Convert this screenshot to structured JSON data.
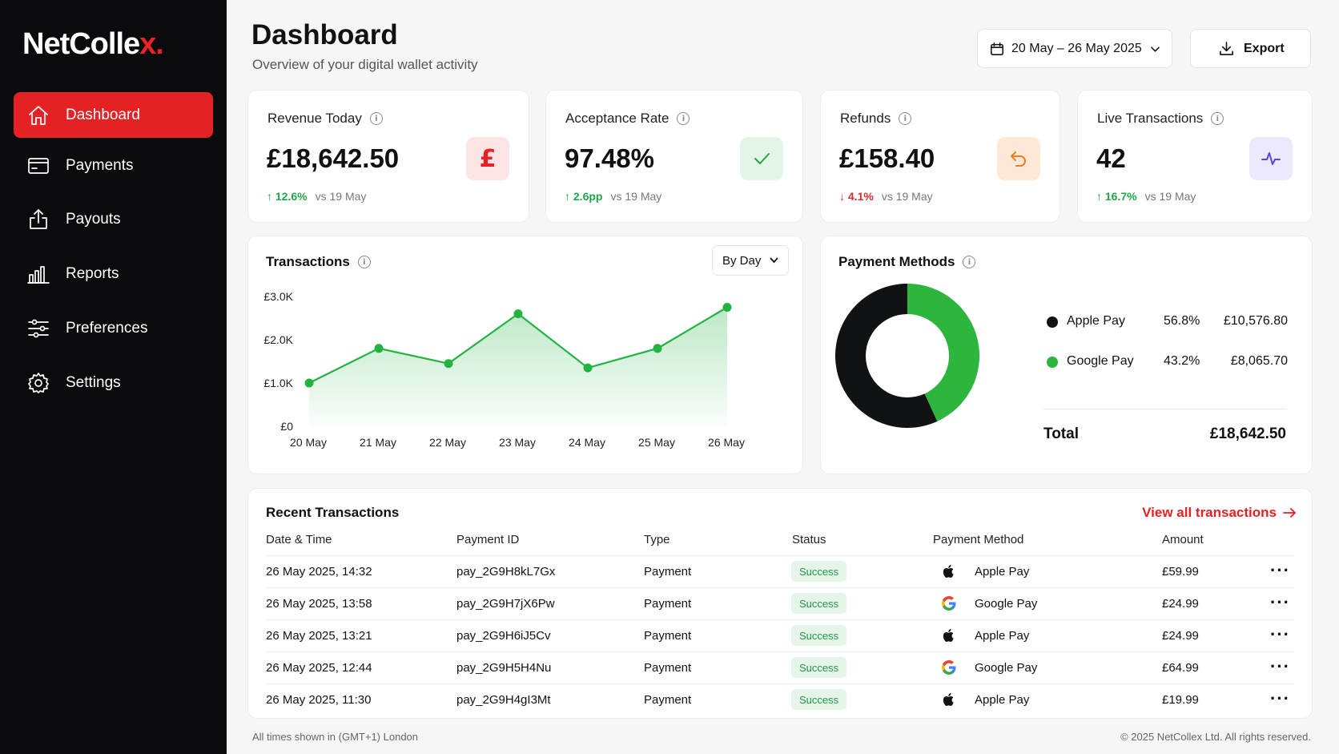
{
  "brand": {
    "name": "NetColle",
    "accent": "x.",
    "accent_color": "#ec2227"
  },
  "sidebar": {
    "items": [
      {
        "label": "Dashboard",
        "icon": "home-icon",
        "active": true
      },
      {
        "label": "Payments",
        "icon": "card-icon"
      },
      {
        "label": "Payouts",
        "icon": "upload-icon"
      },
      {
        "label": "Reports",
        "icon": "bar-chart-icon"
      },
      {
        "label": "Preferences",
        "icon": "sliders-icon"
      },
      {
        "label": "Settings",
        "icon": "gear-icon"
      }
    ]
  },
  "header": {
    "title": "Dashboard",
    "subtitle": "Overview of your digital wallet activity",
    "date_range": "20 May – 26 May 2025",
    "export_label": "Export"
  },
  "stats": [
    {
      "label": "Revenue Today",
      "value": "£18,642.50",
      "delta": "12.6%",
      "direction": "up",
      "compare": "vs 19 May",
      "icon": "pound-icon"
    },
    {
      "label": "Acceptance Rate",
      "value": "97.48%",
      "delta": "2.6pp",
      "direction": "up",
      "compare": "vs 19 May",
      "icon": "check-icon"
    },
    {
      "label": "Refunds",
      "value": "£158.40",
      "delta": "4.1%",
      "direction": "down",
      "compare": "vs 19 May",
      "icon": "undo-icon"
    },
    {
      "label": "Live Transactions",
      "value": "42",
      "delta": "16.7%",
      "direction": "up",
      "compare": "vs 19 May",
      "icon": "pulse-icon"
    }
  ],
  "transactions_chart": {
    "title": "Transactions",
    "granularity": "By Day"
  },
  "chart_data": {
    "type": "area",
    "categories": [
      "20 May",
      "21 May",
      "22 May",
      "23 May",
      "24 May",
      "25 May",
      "26 May"
    ],
    "values": [
      1000,
      1800,
      1450,
      2600,
      1350,
      1800,
      2750
    ],
    "y_ticks": [
      "£0",
      "£1.0K",
      "£2.0K",
      "£3.0K"
    ],
    "ylim": [
      0,
      3000
    ],
    "color": "#22b341"
  },
  "payment_methods": {
    "title": "Payment Methods",
    "items": [
      {
        "name": "Apple Pay",
        "pct": "56.8%",
        "amount": "£10,576.80",
        "share": 56.8,
        "color": "#111214"
      },
      {
        "name": "Google Pay",
        "pct": "43.2%",
        "amount": "£8,065.70",
        "share": 43.2,
        "color": "#2db53e"
      }
    ],
    "total_label": "Total",
    "total_value": "£18,642.50"
  },
  "recent": {
    "title": "Recent Transactions",
    "view_all": "View all transactions",
    "columns": [
      "Date & Time",
      "Payment ID",
      "Type",
      "Status",
      "Payment Method",
      "Amount"
    ],
    "rows": [
      {
        "date": "26 May 2025, 14:32",
        "id": "pay_2G9H8kL7Gx",
        "type": "Payment",
        "status": "Success",
        "method": "Apple Pay",
        "amount": "£59.99"
      },
      {
        "date": "26 May 2025, 13:58",
        "id": "pay_2G9H7jX6Pw",
        "type": "Payment",
        "status": "Success",
        "method": "Google Pay",
        "amount": "£24.99"
      },
      {
        "date": "26 May 2025, 13:21",
        "id": "pay_2G9H6iJ5Cv",
        "type": "Payment",
        "status": "Success",
        "method": "Apple Pay",
        "amount": "£24.99"
      },
      {
        "date": "26 May 2025, 12:44",
        "id": "pay_2G9H5H4Nu",
        "type": "Payment",
        "status": "Success",
        "method": "Google Pay",
        "amount": "£64.99"
      },
      {
        "date": "26 May 2025, 11:30",
        "id": "pay_2G9H4gI3Mt",
        "type": "Payment",
        "status": "Success",
        "method": "Apple Pay",
        "amount": "£19.99"
      }
    ]
  },
  "footer": {
    "timezone": "All times shown in (GMT+1) London",
    "copyright": "© 2025 NetCollex Ltd. All rights reserved."
  }
}
